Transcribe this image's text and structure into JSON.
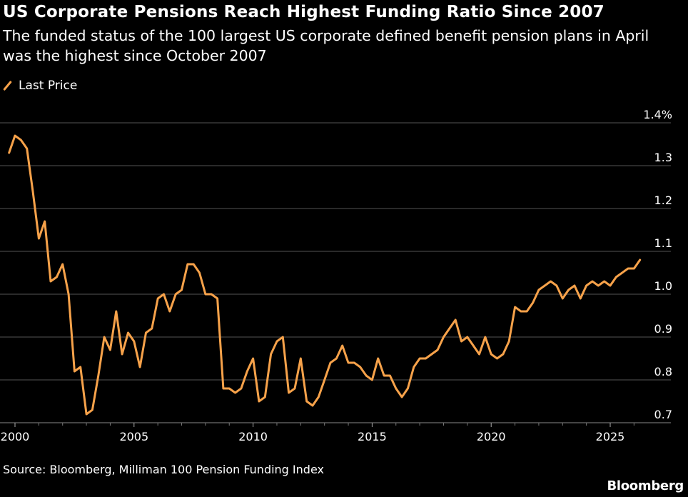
{
  "chart_data": {
    "type": "line",
    "title": "US Corporate Pensions Reach Highest Funding Ratio Since 2007",
    "subtitle": "The funded status of the 100 largest US corporate defined benefit pension plans in April was the highest since October 2007",
    "legend": {
      "placement": "top-left",
      "entries": [
        "Last Price"
      ]
    },
    "ylim": [
      0.7,
      1.4
    ],
    "yticks": [
      {
        "value": 1.4,
        "label": "1.4%"
      },
      {
        "value": 1.3,
        "label": "1.3"
      },
      {
        "value": 1.2,
        "label": "1.2"
      },
      {
        "value": 1.1,
        "label": "1.1"
      },
      {
        "value": 1.0,
        "label": "1.0"
      },
      {
        "value": 0.9,
        "label": "0.9"
      },
      {
        "value": 0.8,
        "label": "0.8"
      },
      {
        "value": 0.7,
        "label": "0.7"
      }
    ],
    "xlim": [
      1999.6,
      2026.8
    ],
    "xticks": [
      {
        "value": 2000,
        "label": "2000"
      },
      {
        "value": 2005,
        "label": "2005"
      },
      {
        "value": 2010,
        "label": "2010"
      },
      {
        "value": 2015,
        "label": "2015"
      },
      {
        "value": 2020,
        "label": "2020"
      },
      {
        "value": 2025,
        "label": "2025"
      }
    ],
    "grid": true,
    "series": [
      {
        "name": "Last Price",
        "color": "#f7a24a",
        "x": [
          1999.75,
          2000.0,
          2000.25,
          2000.5,
          2000.75,
          2001.0,
          2001.25,
          2001.5,
          2001.75,
          2002.0,
          2002.25,
          2002.5,
          2002.75,
          2003.0,
          2003.25,
          2003.5,
          2003.75,
          2004.0,
          2004.25,
          2004.5,
          2004.75,
          2005.0,
          2005.25,
          2005.5,
          2005.75,
          2006.0,
          2006.25,
          2006.5,
          2006.75,
          2007.0,
          2007.25,
          2007.5,
          2007.75,
          2008.0,
          2008.25,
          2008.5,
          2008.75,
          2009.0,
          2009.25,
          2009.5,
          2009.75,
          2010.0,
          2010.25,
          2010.5,
          2010.75,
          2011.0,
          2011.25,
          2011.5,
          2011.75,
          2012.0,
          2012.25,
          2012.5,
          2012.75,
          2013.0,
          2013.25,
          2013.5,
          2013.75,
          2014.0,
          2014.25,
          2014.5,
          2014.75,
          2015.0,
          2015.25,
          2015.5,
          2015.75,
          2016.0,
          2016.25,
          2016.5,
          2016.75,
          2017.0,
          2017.25,
          2017.5,
          2017.75,
          2018.0,
          2018.25,
          2018.5,
          2018.75,
          2019.0,
          2019.25,
          2019.5,
          2019.75,
          2020.0,
          2020.25,
          2020.5,
          2020.75,
          2021.0,
          2021.25,
          2021.5,
          2021.75,
          2022.0,
          2022.25,
          2022.5,
          2022.75,
          2023.0,
          2023.25,
          2023.5,
          2023.75,
          2024.0,
          2024.25,
          2024.5,
          2024.75,
          2025.0,
          2025.25,
          2025.5,
          2025.75,
          2026.0,
          2026.25
        ],
        "values": [
          1.33,
          1.37,
          1.36,
          1.34,
          1.24,
          1.13,
          1.17,
          1.03,
          1.04,
          1.07,
          1.0,
          0.82,
          0.83,
          0.72,
          0.73,
          0.81,
          0.9,
          0.87,
          0.96,
          0.86,
          0.91,
          0.89,
          0.83,
          0.91,
          0.92,
          0.99,
          1.0,
          0.96,
          1.0,
          1.01,
          1.07,
          1.07,
          1.05,
          1.0,
          1.0,
          0.99,
          0.78,
          0.78,
          0.77,
          0.78,
          0.82,
          0.85,
          0.75,
          0.76,
          0.86,
          0.89,
          0.9,
          0.77,
          0.78,
          0.85,
          0.75,
          0.74,
          0.76,
          0.8,
          0.84,
          0.85,
          0.88,
          0.84,
          0.84,
          0.83,
          0.81,
          0.8,
          0.85,
          0.81,
          0.81,
          0.78,
          0.76,
          0.78,
          0.83,
          0.85,
          0.85,
          0.86,
          0.87,
          0.9,
          0.92,
          0.94,
          0.89,
          0.9,
          0.88,
          0.86,
          0.9,
          0.86,
          0.85,
          0.86,
          0.89,
          0.97,
          0.96,
          0.96,
          0.98,
          1.01,
          1.02,
          1.03,
          1.02,
          0.99,
          1.01,
          1.02,
          0.99,
          1.02,
          1.03,
          1.02,
          1.03,
          1.02,
          1.04,
          1.05,
          1.06,
          1.06,
          1.08
        ]
      }
    ]
  },
  "source_text": "Source: Bloomberg, Milliman 100 Pension Funding Index",
  "brand_text": "Bloomberg"
}
